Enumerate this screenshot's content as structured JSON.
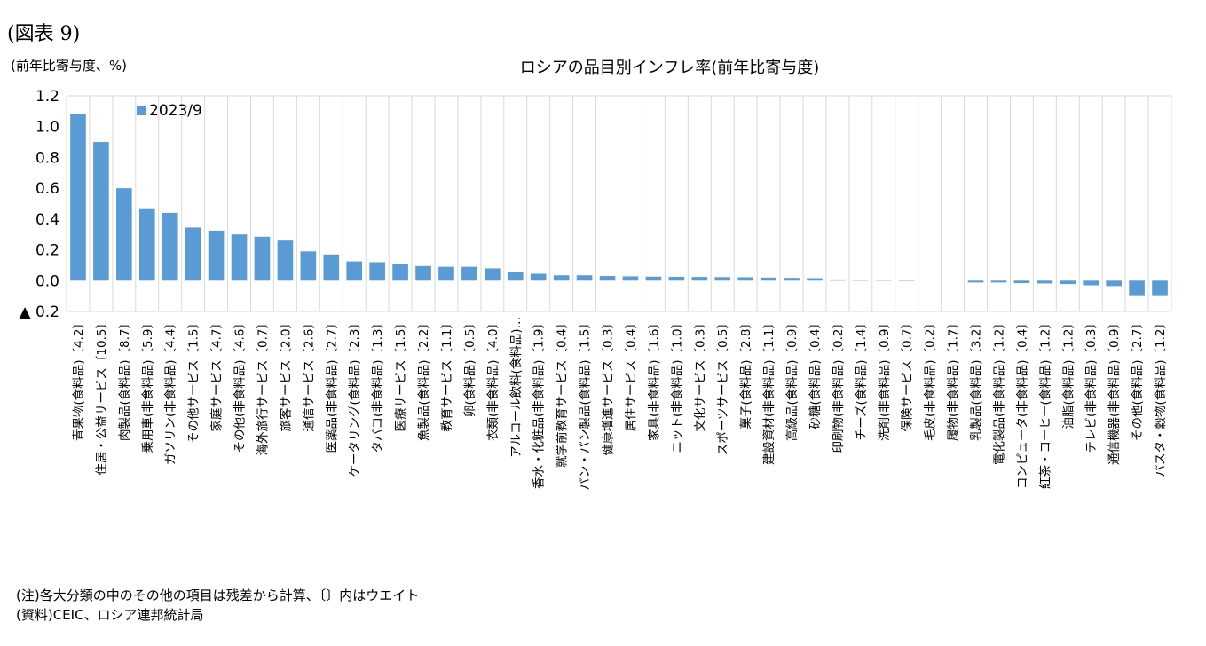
{
  "figure_label": "(図表 9)",
  "y_unit": "(前年比寄与度、%)",
  "notes": [
    "(注)各大分類の中のその他の項目は残差から計算、〔〕内はウエイト",
    "(資料)CEIC、ロシア連邦統計局"
  ],
  "colors": {
    "bar": "#5B9BD5",
    "grid": "#D9D9D9"
  },
  "chart_data": {
    "type": "bar",
    "title": "ロシアの品目別インフレ率(前年比寄与度)",
    "ylim": [
      -0.2,
      1.2
    ],
    "yticks": [
      1.2,
      1.0,
      0.8,
      0.6,
      0.4,
      0.2,
      0.0,
      -0.2
    ],
    "ytick_labels": [
      "1.2",
      "1.0",
      "0.8",
      "0.6",
      "0.4",
      "0.2",
      "0.0",
      "▲ 0.2"
    ],
    "grid": true,
    "legend": "top-left",
    "categories": [
      "青果物(食料品)〔4.2〕",
      "住居・公益サービス〔10.5〕",
      "肉製品(食料品)〔8.7〕",
      "乗用車(非食料品)〔5.9〕",
      "ガソリン(非食料品)〔4.4〕",
      "その他サービス〔1.5〕",
      "家庭サービス〔4.7〕",
      "その他(非食料品)〔4.6〕",
      "海外旅行サービス〔0.7〕",
      "旅客サービス〔2.0〕",
      "通信サービス〔2.6〕",
      "医薬品(非食料品)〔2.7〕",
      "ケータリング(食料品)〔2.3〕",
      "タバコ(非食料品)〔1.3〕",
      "医療サービス〔1.5〕",
      "魚製品(食料品)〔2.2〕",
      "教育サービス〔1.1〕",
      "卵(食料品)〔0.5〕",
      "衣類(非食料品)〔4.0〕",
      "アルコール飲料(食料品)…",
      "香水・化粧品(非食料品)〔1.9〕",
      "就学前教育サービス〔0.4〕",
      "パン・パン製品(食料品)〔1.5〕",
      "健康増進サービス〔0.3〕",
      "居住サービス〔0.4〕",
      "家具(非食料品)〔1.6〕",
      "ニット(非食料品)〔1.0〕",
      "文化サービス〔0.3〕",
      "スポーツサービス〔0.5〕",
      "菓子(食料品)〔2.8〕",
      "建設資材(非食料品)〔1.1〕",
      "高級品(食料品)〔0.9〕",
      "砂糖(食料品)〔0.4〕",
      "印刷物(非食料品)〔0.2〕",
      "チーズ(食料品)〔1.4〕",
      "洗剤(非食料品)〔0.9〕",
      "保険サービス〔0.7〕",
      "毛皮(非食料品)〔0.2〕",
      "履物(非食料品)〔1.7〕",
      "乳製品(食料品)〔3.2〕",
      "電化製品(非食料品)〔1.2〕",
      "コンピュータ(非食料品)〔0.4〕",
      "紅茶・コーヒー(食料品)〔1.2〕",
      "油脂(食料品)〔1.2〕",
      "テレビ(非食料品)〔0.3〕",
      "通信機器(非食料品)〔0.9〕",
      "その他(食料品)〔2.7〕",
      "パスタ・穀物(食料品)〔1.2〕"
    ],
    "series": [
      {
        "name": "2023/9",
        "values": [
          1.08,
          0.9,
          0.6,
          0.47,
          0.44,
          0.345,
          0.325,
          0.3,
          0.285,
          0.26,
          0.19,
          0.17,
          0.125,
          0.12,
          0.11,
          0.095,
          0.09,
          0.09,
          0.08,
          0.055,
          0.045,
          0.035,
          0.035,
          0.03,
          0.028,
          0.026,
          0.025,
          0.024,
          0.023,
          0.022,
          0.02,
          0.018,
          0.016,
          0.008,
          0.006,
          0.005,
          0.004,
          0.0,
          0.0,
          -0.012,
          -0.012,
          -0.016,
          -0.018,
          -0.022,
          -0.03,
          -0.035,
          -0.1,
          -0.1
        ]
      }
    ]
  }
}
